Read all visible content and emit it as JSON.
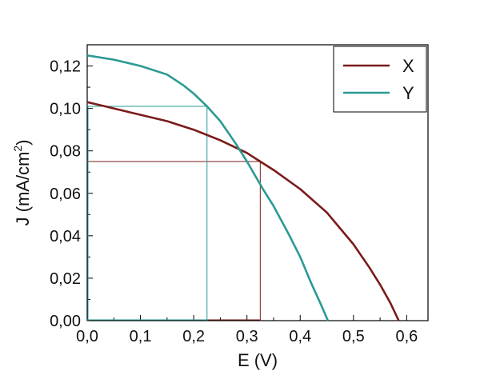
{
  "chart_data": {
    "type": "line",
    "title": "",
    "xlabel": "E (V)",
    "ylabel_main": "J (mA/cm",
    "ylabel_sup": "2",
    "ylabel_close": ")",
    "xlim": [
      0.0,
      0.64
    ],
    "ylim": [
      0.0,
      0.13
    ],
    "x_ticks": [
      0.0,
      0.1,
      0.2,
      0.3,
      0.4,
      0.5,
      0.6
    ],
    "x_tick_labels": [
      "0,0",
      "0,1",
      "0,2",
      "0,3",
      "0,4",
      "0,5",
      "0,6"
    ],
    "y_ticks": [
      0.0,
      0.02,
      0.04,
      0.06,
      0.08,
      0.1,
      0.12
    ],
    "y_tick_labels": [
      "0,00",
      "0,02",
      "0,04",
      "0,06",
      "0,08",
      "0,10",
      "0,12"
    ],
    "grid": false,
    "legend_position": "top-right",
    "series": [
      {
        "name": "X",
        "color": "#7b1a1a",
        "x": [
          0.0,
          0.05,
          0.1,
          0.15,
          0.2,
          0.25,
          0.3,
          0.325,
          0.35,
          0.4,
          0.45,
          0.5,
          0.53,
          0.55,
          0.57,
          0.585
        ],
        "y": [
          0.103,
          0.1,
          0.097,
          0.094,
          0.09,
          0.085,
          0.079,
          0.075,
          0.071,
          0.062,
          0.051,
          0.036,
          0.025,
          0.017,
          0.008,
          0.0
        ],
        "max_power_point": {
          "x": 0.325,
          "y": 0.075
        }
      },
      {
        "name": "Y",
        "color": "#2a9a94",
        "x": [
          0.0,
          0.05,
          0.1,
          0.15,
          0.18,
          0.2,
          0.225,
          0.25,
          0.28,
          0.3,
          0.33,
          0.35,
          0.38,
          0.4,
          0.42,
          0.44,
          0.452
        ],
        "y": [
          0.125,
          0.123,
          0.12,
          0.116,
          0.111,
          0.107,
          0.101,
          0.094,
          0.083,
          0.075,
          0.062,
          0.054,
          0.04,
          0.03,
          0.018,
          0.007,
          0.0
        ],
        "max_power_point": {
          "x": 0.225,
          "y": 0.101
        }
      }
    ]
  }
}
